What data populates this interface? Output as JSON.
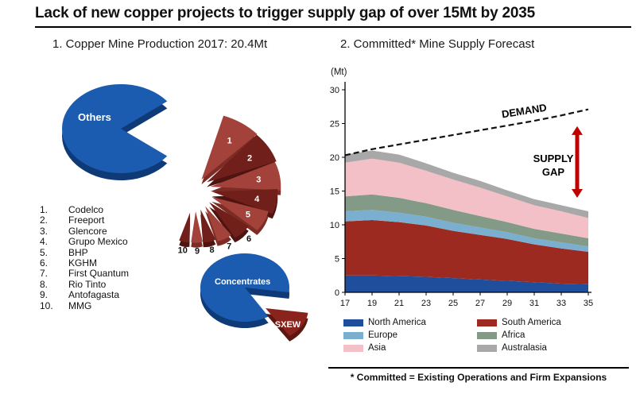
{
  "title": "Lack of new copper projects to trigger supply gap of over 15Mt by 2035",
  "left_panel": {
    "heading": "1. Copper Mine Production 2017: 20.4Mt",
    "companies": [
      {
        "rank": "1.",
        "name": "Codelco"
      },
      {
        "rank": "2.",
        "name": "Freeport"
      },
      {
        "rank": "3.",
        "name": "Glencore"
      },
      {
        "rank": "4.",
        "name": "Grupo Mexico"
      },
      {
        "rank": "5.",
        "name": "BHP"
      },
      {
        "rank": "6.",
        "name": "KGHM"
      },
      {
        "rank": "7.",
        "name": "First Quantum"
      },
      {
        "rank": "8.",
        "name": "Rio Tinto"
      },
      {
        "rank": "9.",
        "name": "Antofagasta"
      },
      {
        "rank": "10.",
        "name": "MMG"
      }
    ]
  },
  "right_panel": {
    "heading": "2. Committed* Mine Supply Forecast",
    "unit_label": "(Mt)",
    "demand_label": "DEMAND",
    "supply_gap_label_line1": "SUPPLY",
    "supply_gap_label_line2": "GAP",
    "arrow_color": "#c00000",
    "legend": [
      {
        "label": "North America",
        "color": "#1f4e9c"
      },
      {
        "label": "Europe",
        "color": "#7bafd0"
      },
      {
        "label": "Asia",
        "color": "#f2c0c6"
      },
      {
        "label": "South America",
        "color": "#9c2a21"
      },
      {
        "label": "Africa",
        "color": "#839a87"
      },
      {
        "label": "Australasia",
        "color": "#a8a8a8"
      }
    ]
  },
  "footnote": "* Committed = Existing Operations and Firm Expansions",
  "chart_data": [
    {
      "type": "pie",
      "title": "Copper Mine Production 2017: 20.4Mt",
      "unit": "Mt",
      "slices": [
        {
          "label": "Others",
          "color": "#1b5cb0"
        },
        {
          "rank": "1",
          "label": "Codelco",
          "color": "#a2423a"
        },
        {
          "rank": "2",
          "label": "Freeport",
          "color": "#701f1b"
        },
        {
          "rank": "3",
          "label": "Glencore",
          "color": "#a2423a"
        },
        {
          "rank": "4",
          "label": "Grupo Mexico",
          "color": "#701f1b"
        },
        {
          "rank": "5",
          "label": "BHP",
          "color": "#a2423a"
        },
        {
          "rank": "6",
          "label": "KGHM",
          "color": "#701f1b"
        },
        {
          "rank": "7",
          "label": "First Quantum",
          "color": "#a2423a"
        },
        {
          "rank": "8",
          "label": "Rio Tinto",
          "color": "#701f1b"
        },
        {
          "rank": "9",
          "label": "Antofagasta",
          "color": "#a2423a"
        },
        {
          "rank": "10",
          "label": "MMG",
          "color": "#701f1b"
        }
      ]
    },
    {
      "type": "pie",
      "slices": [
        {
          "label": "Concentrates",
          "color": "#1b5cb0"
        },
        {
          "label": "SXEW",
          "color": "#8a231c"
        }
      ]
    },
    {
      "type": "area",
      "stacked": true,
      "title": "2. Committed* Mine Supply Forecast",
      "ylabel": "(Mt)",
      "ylim": [
        0,
        30
      ],
      "yticks": [
        0,
        5,
        10,
        15,
        20,
        25,
        30
      ],
      "x": [
        17,
        19,
        21,
        23,
        25,
        27,
        29,
        31,
        33,
        35
      ],
      "series": [
        {
          "name": "North America",
          "color": "#1f4e9c",
          "values": [
            2.5,
            2.5,
            2.4,
            2.3,
            2.1,
            1.9,
            1.7,
            1.5,
            1.3,
            1.2
          ]
        },
        {
          "name": "South America",
          "color": "#9c2a21",
          "values": [
            8.0,
            8.2,
            8.0,
            7.6,
            7.0,
            6.6,
            6.2,
            5.6,
            5.2,
            4.8
          ]
        },
        {
          "name": "Europe",
          "color": "#7bafd0",
          "values": [
            1.5,
            1.5,
            1.4,
            1.3,
            1.2,
            1.1,
            1.0,
            0.9,
            0.9,
            0.8
          ]
        },
        {
          "name": "Africa",
          "color": "#839a87",
          "values": [
            2.2,
            2.3,
            2.2,
            2.0,
            1.9,
            1.7,
            1.5,
            1.4,
            1.3,
            1.2
          ]
        },
        {
          "name": "Asia",
          "color": "#f2c0c6",
          "values": [
            5.0,
            5.3,
            5.2,
            4.8,
            4.5,
            4.2,
            3.8,
            3.5,
            3.3,
            3.0
          ]
        },
        {
          "name": "Australasia",
          "color": "#a8a8a8",
          "values": [
            1.2,
            1.2,
            1.2,
            1.1,
            1.0,
            1.0,
            0.9,
            0.9,
            0.9,
            1.0
          ]
        }
      ],
      "demand": {
        "label": "DEMAND",
        "style": "dashed",
        "values": [
          20.3,
          21.2,
          21.9,
          22.6,
          23.3,
          24.0,
          24.7,
          25.4,
          26.2,
          27.1
        ]
      },
      "annotations": [
        {
          "label": "SUPPLY GAP",
          "color": "#c00000"
        }
      ],
      "legend_position": "bottom"
    }
  ]
}
